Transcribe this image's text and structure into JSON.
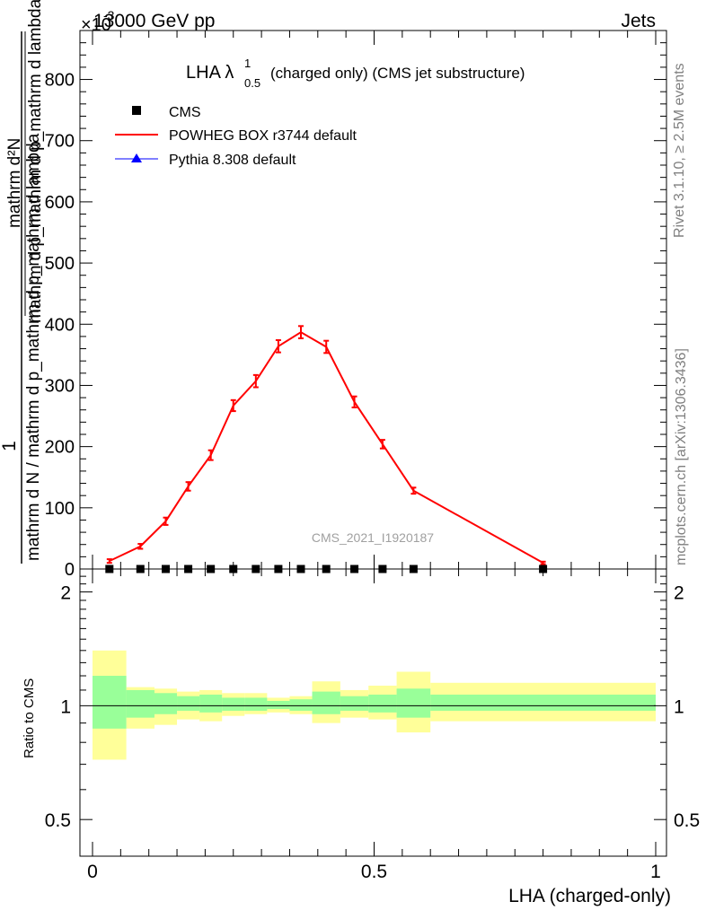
{
  "header": {
    "left": "13000 GeV pp",
    "right": "Jets",
    "exponent": "×10",
    "exponent_power": "-3"
  },
  "side_labels": {
    "top": "Rivet 3.1.10, ≥ 2.5M events",
    "bottom": "mcplots.cern.ch [arXiv:1306.3436]"
  },
  "watermark": "CMS_2021_I1920187",
  "chart_data": [
    {
      "type": "line",
      "title": "LHA λ",
      "title_sup": "1",
      "title_sub": "0.5",
      "title_rest": "(charged only) (CMS jet substructure)",
      "ylabel_numerator": "1",
      "ylabel_denominator": "mathrm d N / mathrm d p_mathrm d p_mathrm d lambda",
      "ylabel_fraction": "mathrm d²N",
      "ylabel_fraction_den": "mathrm d p_mathrm d p_mathrm d lambda",
      "ylim": [
        0,
        880
      ],
      "yticks": [
        0,
        100,
        200,
        300,
        400,
        500,
        600,
        700,
        800
      ],
      "xlim": [
        0,
        1
      ],
      "legend_position": "top-left",
      "series": [
        {
          "name": "CMS",
          "marker": "square",
          "color": "#000000",
          "x": [
            0.03,
            0.085,
            0.13,
            0.17,
            0.21,
            0.25,
            0.29,
            0.33,
            0.37,
            0.415,
            0.465,
            0.515,
            0.57,
            0.8
          ],
          "y": [
            0,
            0,
            0,
            0,
            0,
            0,
            0,
            0,
            0,
            0,
            0,
            0,
            0,
            0
          ]
        },
        {
          "name": "POWHEG BOX r3744 default",
          "color": "#ff0000",
          "x": [
            0.03,
            0.085,
            0.13,
            0.17,
            0.21,
            0.25,
            0.29,
            0.33,
            0.37,
            0.415,
            0.465,
            0.515,
            0.57,
            0.8
          ],
          "y": [
            13,
            37,
            78,
            135,
            186,
            267,
            307,
            364,
            387,
            363,
            273,
            204,
            128,
            10
          ],
          "err": [
            3,
            4,
            6,
            7,
            8,
            9,
            10,
            10,
            10,
            10,
            9,
            7,
            5,
            2
          ]
        },
        {
          "name": "Pythia 8.308 default",
          "marker": "triangle",
          "color": "#0000ff",
          "x": [],
          "y": []
        }
      ]
    },
    {
      "type": "area",
      "ylabel": "Ratio to CMS",
      "xlabel": "LHA (charged-only)",
      "xlim": [
        0,
        1
      ],
      "xticks": [
        "0",
        "0.5",
        "1"
      ],
      "ylim": [
        0.4,
        2.3
      ],
      "ytick_labels": [
        "0.5",
        "1",
        "2"
      ],
      "yticks": [
        0.5,
        1,
        2
      ],
      "bands": {
        "edges": [
          0,
          0.06,
          0.11,
          0.15,
          0.19,
          0.23,
          0.27,
          0.31,
          0.35,
          0.39,
          0.44,
          0.49,
          0.54,
          0.6,
          1.0
        ],
        "green_lo": [
          0.87,
          0.93,
          0.95,
          0.97,
          0.96,
          0.97,
          0.97,
          0.98,
          0.97,
          0.95,
          0.97,
          0.96,
          0.93,
          0.97
        ],
        "green_hi": [
          1.2,
          1.1,
          1.08,
          1.06,
          1.07,
          1.05,
          1.05,
          1.03,
          1.04,
          1.09,
          1.06,
          1.07,
          1.11,
          1.07
        ],
        "yellow_lo": [
          0.72,
          0.87,
          0.89,
          0.92,
          0.91,
          0.94,
          0.95,
          0.96,
          0.95,
          0.9,
          0.93,
          0.92,
          0.85,
          0.91
        ],
        "yellow_hi": [
          1.4,
          1.12,
          1.11,
          1.09,
          1.1,
          1.08,
          1.08,
          1.05,
          1.06,
          1.16,
          1.1,
          1.13,
          1.23,
          1.15
        ],
        "green_color": "#99ff99",
        "yellow_color": "#ffff99"
      }
    }
  ]
}
